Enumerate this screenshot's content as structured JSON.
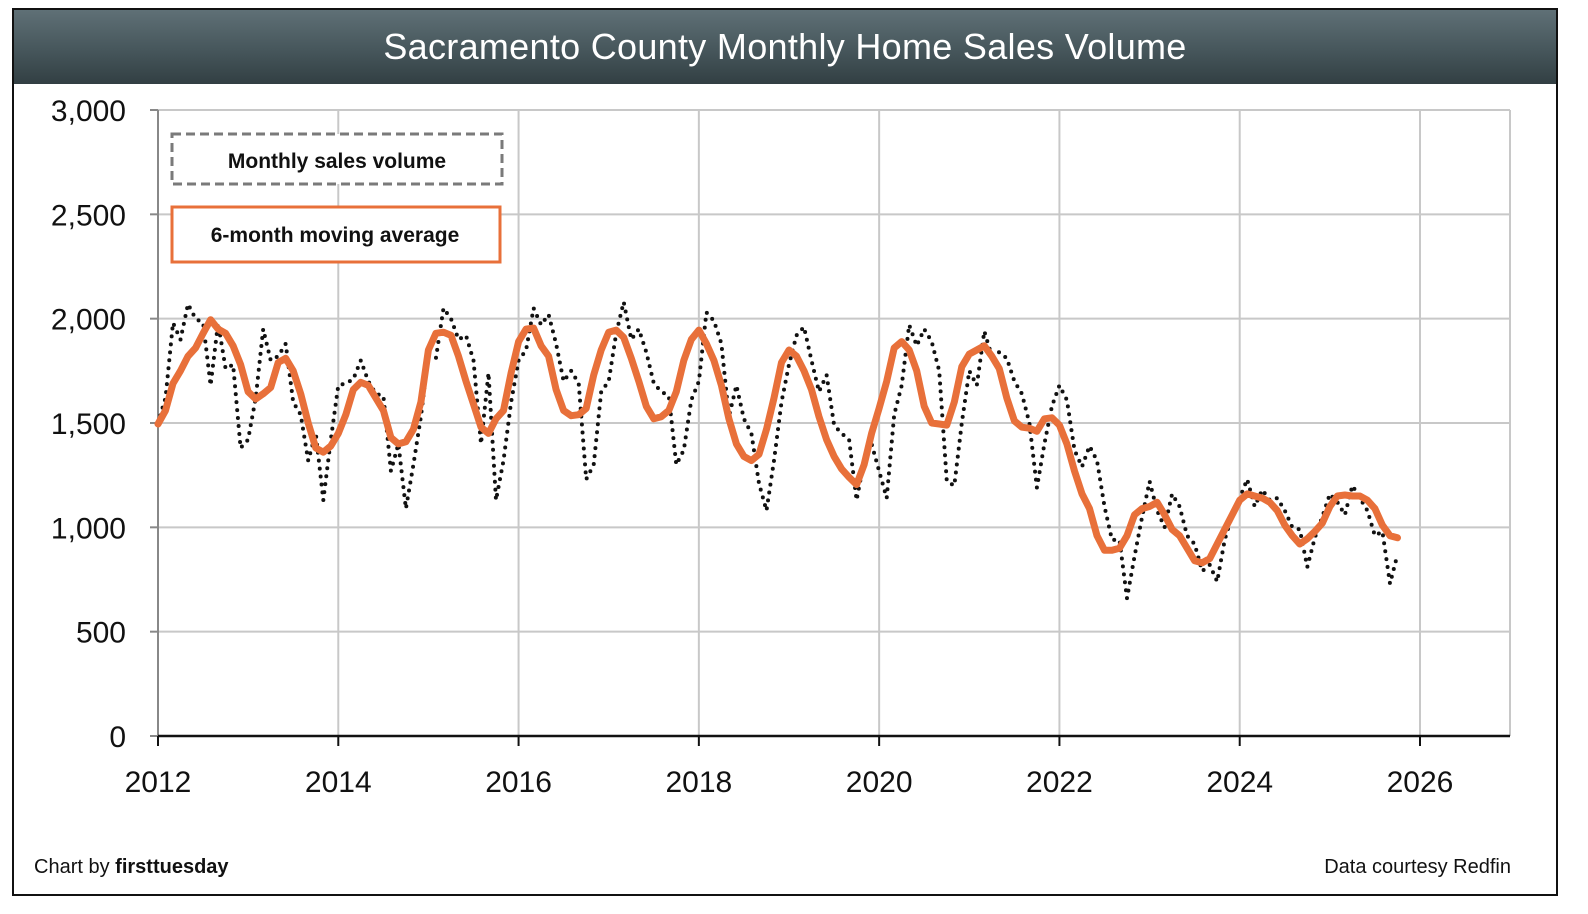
{
  "chart_data": {
    "type": "line",
    "title": "Sacramento County Monthly Home Sales Volume",
    "xlabel": "",
    "ylabel": "",
    "x_start": "2012-01",
    "x_step": "month",
    "xlim": [
      2012,
      2027.0
    ],
    "ylim": [
      0,
      3000
    ],
    "yticks": [
      0,
      500,
      1000,
      1500,
      2000,
      2500,
      3000
    ],
    "ytick_labels": [
      "0",
      "500",
      "1,000",
      "1,500",
      "2,000",
      "2,500",
      "3,000"
    ],
    "xticks": [
      2012,
      2014,
      2016,
      2018,
      2020,
      2022,
      2024,
      2026
    ],
    "xtick_labels": [
      "2012",
      "2014",
      "2016",
      "2018",
      "2020",
      "2022",
      "2024",
      "2026"
    ],
    "grid": true,
    "legend_position": "top-left",
    "series": [
      {
        "name": "Monthly sales volume",
        "style": "dotted",
        "color": "#111111",
        "values": [
          1500,
          1620,
          1980,
          1900,
          2070,
          2000,
          1980,
          1680,
          1980,
          1760,
          1780,
          1380,
          1420,
          1620,
          1950,
          1800,
          1820,
          1880,
          1600,
          1540,
          1320,
          1450,
          1130,
          1420,
          1680,
          1690,
          1710,
          1800,
          1700,
          1640,
          1630,
          1270,
          1400,
          1090,
          1300,
          1530,
          1820,
          1810,
          2050,
          2000,
          1900,
          1920,
          1800,
          1400,
          1740,
          1130,
          1320,
          1600,
          1800,
          1850,
          2050,
          1970,
          2020,
          1880,
          1700,
          1750,
          1690,
          1230,
          1300,
          1650,
          1700,
          1930,
          2080,
          1900,
          1950,
          1840,
          1690,
          1650,
          1630,
          1300,
          1370,
          1610,
          1700,
          2030,
          1990,
          1880,
          1530,
          1680,
          1520,
          1450,
          1210,
          1080,
          1320,
          1600,
          1780,
          1920,
          1960,
          1800,
          1650,
          1730,
          1490,
          1450,
          1420,
          1130,
          1320,
          1400,
          1270,
          1140,
          1540,
          1680,
          1970,
          1870,
          1950,
          1890,
          1750,
          1220,
          1200,
          1500,
          1750,
          1680,
          1940,
          1820,
          1840,
          1810,
          1700,
          1640,
          1500,
          1190,
          1400,
          1580,
          1680,
          1610,
          1370,
          1290,
          1390,
          1320,
          1100,
          940,
          940,
          660,
          860,
          1050,
          1220,
          1080,
          1000,
          1160,
          1100,
          960,
          920,
          790,
          820,
          740,
          940,
          1060,
          1140,
          1230,
          1100,
          1180,
          1130,
          1140,
          1080,
          1000,
          990,
          810,
          950,
          1050,
          1160,
          1120,
          1060,
          1200,
          1140,
          1080,
          960,
          980,
          730,
          870
        ]
      },
      {
        "name": "6-month moving average",
        "style": "solid",
        "color": "#e8703a",
        "values": [
          1495,
          1560,
          1690,
          1750,
          1820,
          1860,
          1930,
          1995,
          1950,
          1930,
          1870,
          1780,
          1650,
          1615,
          1640,
          1670,
          1790,
          1810,
          1750,
          1640,
          1500,
          1380,
          1360,
          1390,
          1450,
          1540,
          1660,
          1695,
          1680,
          1620,
          1560,
          1430,
          1400,
          1410,
          1470,
          1600,
          1850,
          1930,
          1935,
          1920,
          1820,
          1700,
          1590,
          1480,
          1450,
          1520,
          1560,
          1740,
          1890,
          1950,
          1955,
          1870,
          1820,
          1660,
          1560,
          1535,
          1540,
          1570,
          1730,
          1850,
          1935,
          1945,
          1910,
          1810,
          1700,
          1580,
          1520,
          1530,
          1560,
          1650,
          1800,
          1900,
          1945,
          1880,
          1800,
          1680,
          1520,
          1400,
          1340,
          1320,
          1350,
          1470,
          1620,
          1790,
          1850,
          1820,
          1750,
          1660,
          1530,
          1420,
          1340,
          1280,
          1240,
          1205,
          1300,
          1450,
          1570,
          1700,
          1860,
          1890,
          1850,
          1750,
          1580,
          1500,
          1495,
          1490,
          1600,
          1770,
          1830,
          1850,
          1870,
          1820,
          1760,
          1620,
          1510,
          1480,
          1475,
          1460,
          1520,
          1525,
          1490,
          1400,
          1270,
          1160,
          1090,
          960,
          890,
          890,
          900,
          960,
          1060,
          1090,
          1100,
          1120,
          1060,
          990,
          960,
          900,
          840,
          830,
          850,
          920,
          990,
          1060,
          1130,
          1160,
          1150,
          1140,
          1120,
          1080,
          1010,
          960,
          920,
          945,
          980,
          1020,
          1100,
          1150,
          1155,
          1150,
          1150,
          1130,
          1090,
          1010,
          960,
          950
        ]
      }
    ]
  },
  "header": {
    "title": "Sacramento County Monthly Home Sales Volume"
  },
  "legend": {
    "items": [
      {
        "label": "Monthly sales volume",
        "border_style": "dashed",
        "border_color": "#7a7a7a"
      },
      {
        "label": "6-month moving average",
        "border_style": "solid",
        "border_color": "#e8703a"
      }
    ]
  },
  "footer": {
    "credit_prefix": "Chart by ",
    "credit_brand": "firsttuesday",
    "source": "Data courtesy Redfin"
  },
  "colors": {
    "title_bar_top": "#5f7076",
    "title_bar_bottom": "#323f43",
    "grid": "#c8c8c8",
    "axis": "#111111",
    "moving_average": "#e8703a",
    "monthly": "#111111"
  }
}
